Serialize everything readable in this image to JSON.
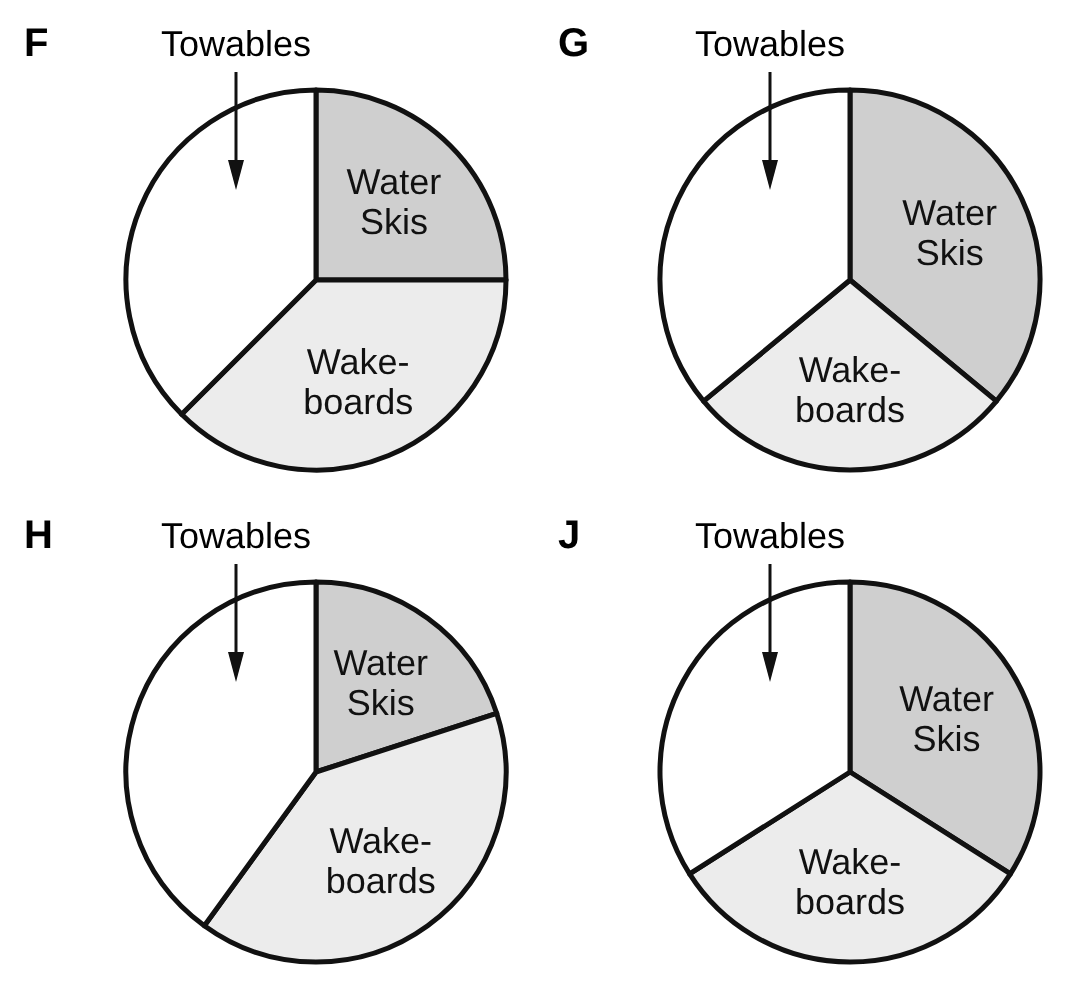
{
  "chart_data": [
    {
      "type": "pie",
      "title": "F",
      "categories": [
        "Water\nSkis",
        "Wake-\nboards",
        "Towables"
      ],
      "values": [
        25,
        37.5,
        37.5
      ],
      "colors": [
        "#cfcfcf",
        "#ececec",
        "#ffffff"
      ]
    },
    {
      "type": "pie",
      "title": "G",
      "categories": [
        "Water\nSkis",
        "Wake-\nboards",
        "Towables"
      ],
      "values": [
        36,
        28,
        36
      ],
      "colors": [
        "#cfcfcf",
        "#ececec",
        "#ffffff"
      ]
    },
    {
      "type": "pie",
      "title": "H",
      "categories": [
        "Water\nSkis",
        "Wake-\nboards",
        "Towables"
      ],
      "values": [
        20,
        40,
        40
      ],
      "colors": [
        "#cfcfcf",
        "#ececec",
        "#ffffff"
      ]
    },
    {
      "type": "pie",
      "title": "J",
      "categories": [
        "Water\nSkis",
        "Wake-\nboards",
        "Towables"
      ],
      "values": [
        34,
        32,
        34
      ],
      "colors": [
        "#cfcfcf",
        "#ececec",
        "#ffffff"
      ]
    }
  ]
}
